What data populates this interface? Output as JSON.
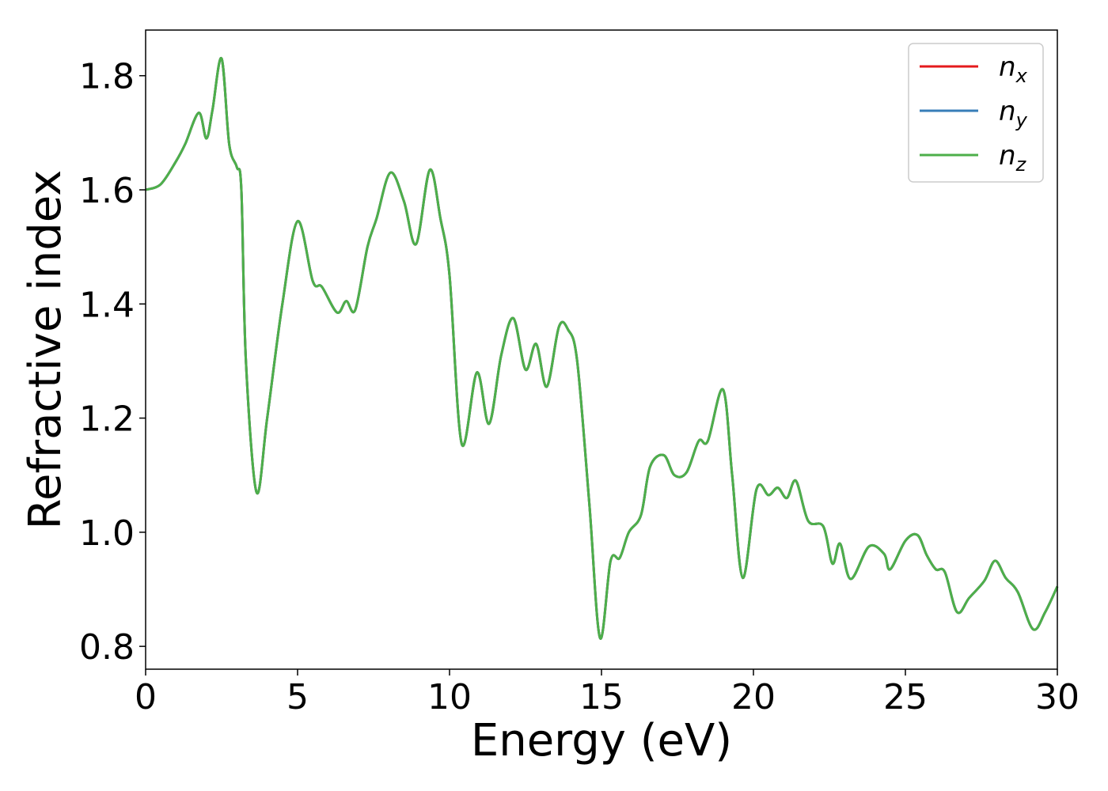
{
  "chart_data": {
    "type": "line",
    "title": "",
    "xlabel": "Energy (eV)",
    "ylabel": "Refractive index",
    "xlim": [
      0,
      30
    ],
    "ylim": [
      0.76,
      1.88
    ],
    "xticks": [
      0,
      5,
      10,
      15,
      20,
      25,
      30
    ],
    "yticks": [
      0.8,
      1.0,
      1.2,
      1.4,
      1.6,
      1.8
    ],
    "xtick_labels": [
      "0",
      "5",
      "10",
      "15",
      "20",
      "25",
      "30"
    ],
    "ytick_labels": [
      "0.8",
      "1.0",
      "1.2",
      "1.4",
      "1.6",
      "1.8"
    ],
    "grid": false,
    "legend_position": "top-right",
    "series": [
      {
        "name": "n",
        "sub": "x",
        "color": "#e41a1c"
      },
      {
        "name": "n",
        "sub": "y",
        "color": "#377eb8"
      },
      {
        "name": "n",
        "sub": "z",
        "color": "#4daf4a"
      }
    ],
    "x": [
      0,
      0.5,
      1.0,
      1.3,
      1.75,
      2.0,
      2.2,
      2.5,
      2.75,
      3.0,
      3.15,
      3.3,
      3.65,
      4.0,
      4.5,
      5.0,
      5.5,
      5.8,
      6.3,
      6.6,
      6.9,
      7.3,
      7.6,
      8.05,
      8.5,
      8.9,
      9.35,
      9.7,
      10.0,
      10.4,
      10.9,
      11.3,
      11.7,
      12.1,
      12.5,
      12.85,
      13.2,
      13.6,
      13.9,
      14.2,
      14.6,
      14.95,
      15.3,
      15.6,
      15.9,
      16.3,
      16.6,
      17.05,
      17.4,
      17.8,
      18.2,
      18.5,
      19.0,
      19.3,
      19.65,
      20.1,
      20.5,
      20.8,
      21.1,
      21.4,
      21.8,
      22.3,
      22.6,
      22.85,
      23.2,
      23.8,
      24.3,
      24.5,
      25.0,
      25.4,
      25.7,
      26.0,
      26.3,
      26.7,
      27.1,
      27.6,
      27.95,
      28.3,
      28.7,
      29.2,
      29.6,
      30.0
    ],
    "values": [
      1.6,
      1.61,
      1.65,
      1.68,
      1.735,
      1.69,
      1.74,
      1.83,
      1.68,
      1.64,
      1.6,
      1.3,
      1.07,
      1.2,
      1.4,
      1.545,
      1.44,
      1.43,
      1.385,
      1.405,
      1.39,
      1.5,
      1.55,
      1.63,
      1.58,
      1.505,
      1.635,
      1.55,
      1.45,
      1.155,
      1.28,
      1.19,
      1.31,
      1.375,
      1.285,
      1.33,
      1.255,
      1.36,
      1.355,
      1.3,
      1.05,
      0.815,
      0.95,
      0.955,
      1.0,
      1.03,
      1.115,
      1.135,
      1.1,
      1.105,
      1.16,
      1.16,
      1.25,
      1.1,
      0.92,
      1.075,
      1.065,
      1.078,
      1.06,
      1.09,
      1.02,
      1.01,
      0.945,
      0.98,
      0.918,
      0.975,
      0.962,
      0.935,
      0.985,
      0.995,
      0.96,
      0.935,
      0.93,
      0.86,
      0.885,
      0.915,
      0.95,
      0.92,
      0.895,
      0.83,
      0.86,
      0.905
    ]
  }
}
